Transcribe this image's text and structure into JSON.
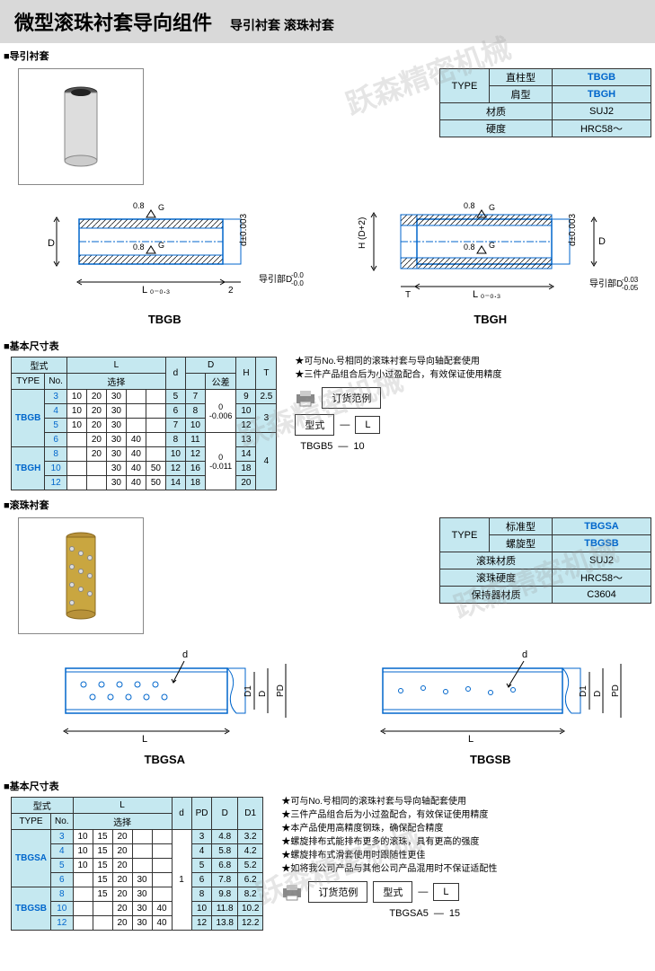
{
  "header": {
    "title": "微型滚珠衬套导向组件",
    "sub": "导引衬套 滚珠衬套"
  },
  "watermark": "跃森精密机械",
  "sec1": {
    "label": "导引衬套",
    "info": {
      "typeLabel": "TYPE",
      "rows": [
        {
          "k": "直柱型",
          "v": "TBGB"
        },
        {
          "k": "肩型",
          "v": "TBGH"
        }
      ],
      "props": [
        {
          "k": "材质",
          "v": "SUJ2"
        },
        {
          "k": "硬度",
          "v": "HRC58～"
        }
      ]
    },
    "draw": {
      "left": "TBGB",
      "right": "TBGH",
      "surf": "0.8",
      "dtol": "d±0.003",
      "ltol": "L ₀₋₀.₃",
      "guide": "导引部D",
      "gtol1": "-0.03",
      "gtol2": "-0.05",
      "t": "T",
      "h": "H (D+2)"
    },
    "basicLabel": "基本尺寸表",
    "tbl": {
      "hdr": {
        "type": "型式",
        "typeE": "TYPE",
        "no": "No.",
        "L": "L",
        "sel": "选择",
        "d": "d",
        "D": "D",
        "tol": "公差",
        "H": "H",
        "T": "T"
      },
      "rows": [
        {
          "no": "3",
          "L": [
            "10",
            "20",
            "30",
            "",
            ""
          ],
          "d": "5",
          "D": "7",
          "tol": "0\n-0.006",
          "H": "9",
          "T": "2.5"
        },
        {
          "no": "4",
          "L": [
            "10",
            "20",
            "30",
            "",
            ""
          ],
          "d": "6",
          "D": "8",
          "tol": "",
          "H": "10",
          "T": "3"
        },
        {
          "no": "5",
          "L": [
            "10",
            "20",
            "30",
            "",
            ""
          ],
          "d": "7",
          "D": "10",
          "tol": "",
          "H": "12",
          "T": ""
        },
        {
          "no": "6",
          "L": [
            "",
            "20",
            "30",
            "40",
            ""
          ],
          "d": "8",
          "D": "11",
          "tol": "",
          "H": "13",
          "T": ""
        },
        {
          "no": "8",
          "L": [
            "",
            "20",
            "30",
            "40",
            ""
          ],
          "d": "10",
          "D": "12",
          "tol": "0\n-0.011",
          "H": "14",
          "T": "4"
        },
        {
          "no": "10",
          "L": [
            "",
            "",
            "30",
            "40",
            "50"
          ],
          "d": "12",
          "D": "16",
          "tol": "",
          "H": "18",
          "T": ""
        },
        {
          "no": "12",
          "L": [
            "",
            "",
            "30",
            "40",
            "50"
          ],
          "d": "14",
          "D": "18",
          "tol": "",
          "H": "20",
          "T": ""
        }
      ],
      "types": [
        "TBGB",
        "TBGH"
      ]
    },
    "notes": [
      "可与No.号相同的滚珠衬套与导向轴配套使用",
      "三件产品组合后为小过盈配合，有效保证使用精度"
    ],
    "order": {
      "label": "订货范例",
      "type": "型式",
      "L": "L",
      "ex1": "TBGB5",
      "ex2": "10"
    }
  },
  "sec2": {
    "label": "滚珠衬套",
    "info": {
      "typeLabel": "TYPE",
      "rows": [
        {
          "k": "标准型",
          "v": "TBGSA"
        },
        {
          "k": "螺旋型",
          "v": "TBGSB"
        }
      ],
      "props": [
        {
          "k": "滚珠材质",
          "v": "SUJ2"
        },
        {
          "k": "滚珠硬度",
          "v": "HRC58～"
        },
        {
          "k": "保持器材质",
          "v": "C3604"
        }
      ]
    },
    "draw": {
      "left": "TBGSA",
      "right": "TBGSB",
      "d": "d",
      "L": "L",
      "D": "D",
      "D1": "D1",
      "PD": "PD"
    },
    "basicLabel": "基本尺寸表",
    "tbl": {
      "hdr": {
        "type": "型式",
        "typeE": "TYPE",
        "no": "No.",
        "L": "L",
        "sel": "选择",
        "d": "d",
        "PD": "PD",
        "D": "D",
        "D1": "D1"
      },
      "rows": [
        {
          "no": "3",
          "L": [
            "10",
            "15",
            "20",
            "",
            ""
          ],
          "d": "1",
          "PD": "3",
          "D": "4.8",
          "D1": "3.2"
        },
        {
          "no": "4",
          "L": [
            "10",
            "15",
            "20",
            "",
            ""
          ],
          "d": "",
          "PD": "4",
          "D": "5.8",
          "D1": "4.2"
        },
        {
          "no": "5",
          "L": [
            "10",
            "15",
            "20",
            "",
            ""
          ],
          "d": "",
          "PD": "5",
          "D": "6.8",
          "D1": "5.2"
        },
        {
          "no": "6",
          "L": [
            "",
            "15",
            "20",
            "30",
            ""
          ],
          "d": "",
          "PD": "6",
          "D": "7.8",
          "D1": "6.2"
        },
        {
          "no": "8",
          "L": [
            "",
            "15",
            "20",
            "30",
            ""
          ],
          "d": "",
          "PD": "8",
          "D": "9.8",
          "D1": "8.2"
        },
        {
          "no": "10",
          "L": [
            "",
            "",
            "20",
            "30",
            "40"
          ],
          "d": "",
          "PD": "10",
          "D": "11.8",
          "D1": "10.2"
        },
        {
          "no": "12",
          "L": [
            "",
            "",
            "20",
            "30",
            "40"
          ],
          "d": "",
          "PD": "12",
          "D": "13.8",
          "D1": "12.2"
        }
      ],
      "types": [
        "TBGSA",
        "TBGSB"
      ]
    },
    "notes": [
      "可与No.号相同的滚珠衬套与导向轴配套使用",
      "三件产品组合后为小过盈配合，有效保证使用精度",
      "本产品使用高精度钢珠，确保配合精度",
      "螺旋排布式能排布更多的滚珠，具有更高的强度",
      "螺旋排布式滑套使用时跟随性更佳",
      "如将我公司产品与其他公司产品混用时不保证适配性"
    ],
    "order": {
      "label": "订货范例",
      "type": "型式",
      "L": "L",
      "ex1": "TBGSA5",
      "ex2": "15"
    }
  }
}
